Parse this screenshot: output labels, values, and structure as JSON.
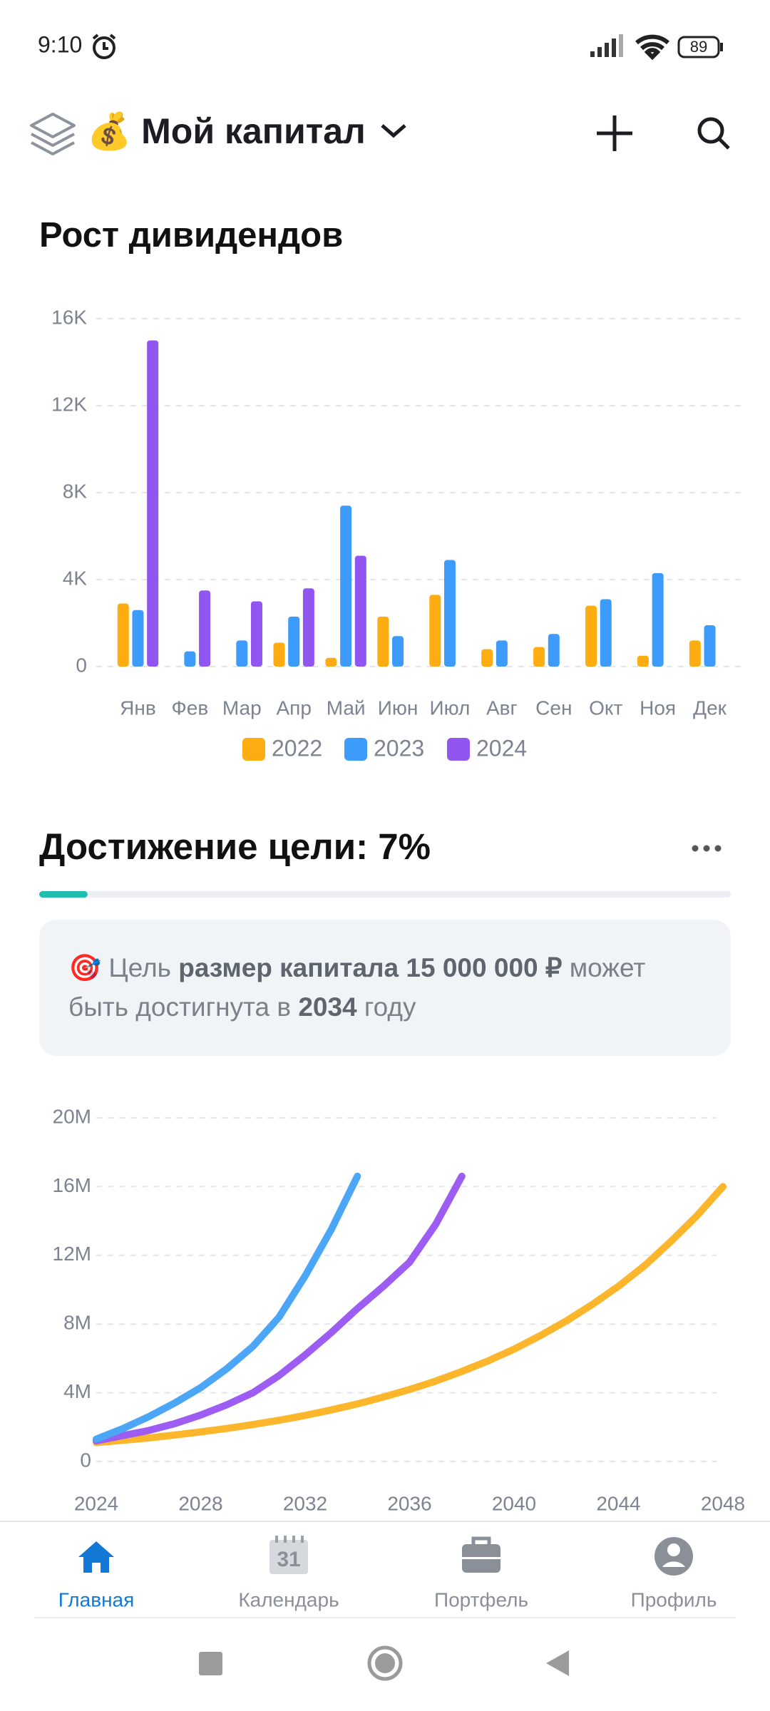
{
  "status": {
    "time": "9:10",
    "battery": "89"
  },
  "header": {
    "title": "💰 Мой капитал"
  },
  "chart_data": [
    {
      "type": "bar",
      "title": "Рост дивидендов",
      "legend": "bottom",
      "grid": true,
      "categories": [
        "Янв",
        "Фев",
        "Мар",
        "Апр",
        "Май",
        "Июн",
        "Июл",
        "Авг",
        "Сен",
        "Окт",
        "Ноя",
        "Дек"
      ],
      "series": [
        {
          "name": "2022",
          "color": "#fdad12",
          "values": [
            2900,
            0,
            0,
            1100,
            400,
            2300,
            3300,
            800,
            900,
            2800,
            500,
            1200
          ]
        },
        {
          "name": "2023",
          "color": "#3d9bfb",
          "values": [
            2600,
            700,
            1200,
            2300,
            7400,
            1400,
            4900,
            1200,
            1500,
            3100,
            4300,
            1900
          ]
        },
        {
          "name": "2024",
          "color": "#9256f0",
          "values": [
            15000,
            3500,
            3000,
            3600,
            5100,
            0,
            0,
            0,
            0,
            0,
            0,
            0
          ]
        }
      ],
      "ylim": [
        0,
        16000
      ],
      "yticks": [
        0,
        {
          "value": 4000,
          "label": "4K"
        },
        {
          "value": 8000,
          "label": "8K"
        },
        {
          "value": 12000,
          "label": "12K"
        },
        {
          "value": 16000,
          "label": "16K"
        }
      ]
    },
    {
      "type": "line",
      "grid": true,
      "x": [
        2024,
        2025,
        2026,
        2027,
        2028,
        2029,
        2030,
        2031,
        2032,
        2033,
        2034,
        2035,
        2036,
        2037,
        2038,
        2039,
        2040,
        2041,
        2042,
        2043,
        2044,
        2045,
        2046,
        2047,
        2048
      ],
      "series": [
        {
          "color": "#fbb62c",
          "values": [
            1100000,
            1230000,
            1370000,
            1540000,
            1720000,
            1920000,
            2150000,
            2400000,
            2680000,
            3000000,
            3350000,
            3750000,
            4190000,
            4680000,
            5240000,
            5850000,
            6540000,
            7320000,
            8180000,
            9140000,
            10200000,
            11400000,
            12800000,
            14300000,
            16000000
          ]
        },
        {
          "color": "#9d5cf2",
          "values": [
            1200000,
            1500000,
            1800000,
            2200000,
            2700000,
            3300000,
            4000000,
            5000000,
            6200000,
            7500000,
            8900000,
            10200000,
            11600000,
            13800000,
            16600000,
            null,
            null,
            null,
            null,
            null,
            null,
            null,
            null,
            null,
            null
          ]
        },
        {
          "color": "#4ca6f7",
          "values": [
            1300000,
            1900000,
            2600000,
            3400000,
            4300000,
            5400000,
            6700000,
            8400000,
            10800000,
            13500000,
            16600000,
            null,
            null,
            null,
            null,
            null,
            null,
            null,
            null,
            null,
            null,
            null,
            null,
            null,
            null
          ]
        }
      ],
      "xlim": [
        2024,
        2048
      ],
      "xticks": [
        2024,
        2028,
        2032,
        2036,
        2040,
        2044,
        2048
      ],
      "ylim": [
        0,
        20000000
      ],
      "yticks": [
        0,
        {
          "value": 4000000,
          "label": "4M"
        },
        {
          "value": 8000000,
          "label": "8M"
        },
        {
          "value": 12000000,
          "label": "12M"
        },
        {
          "value": 16000000,
          "label": "16M"
        },
        {
          "value": 20000000,
          "label": "20M"
        }
      ]
    }
  ],
  "goal": {
    "title": "Достижение цели:",
    "progress": 7,
    "progress_label": "7%",
    "icon": "🎯",
    "message": [
      "Цель ",
      "размер капитала 15 000 000 ₽",
      " может",
      "быть достигнута в ",
      "2034",
      " году"
    ]
  },
  "nav": {
    "items": [
      "Главная",
      "Календарь",
      "Портфель",
      "Профиль"
    ],
    "calendar_day": "31"
  }
}
